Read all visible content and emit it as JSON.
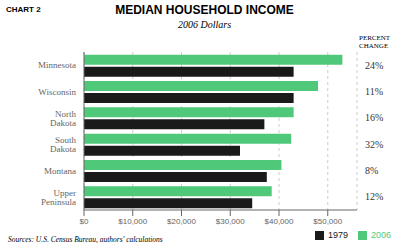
{
  "chart_data": {
    "type": "bar",
    "orientation": "horizontal",
    "title": "MEDIAN HOUSEHOLD INCOME",
    "subtitle": "2006 Dollars",
    "annotations": [
      "CHART 2",
      "Sources: U.S. Census Bureau, authors' calculations"
    ],
    "categories": [
      "Minnesota",
      "Wisconsin",
      "North Dakota",
      "South Dakota",
      "Montana",
      "Upper Peninsula"
    ],
    "series": [
      {
        "name": "2006",
        "color": "#4fc87a",
        "values": [
          53000,
          48000,
          43000,
          42500,
          40500,
          38500
        ]
      },
      {
        "name": "1979",
        "color": "#1a1a1a",
        "values": [
          43000,
          43000,
          37000,
          32000,
          37500,
          34500
        ]
      }
    ],
    "percent_change_title": "PERCENT\nCHANGE",
    "percent_change": [
      {
        "value": 24,
        "label": "24%"
      },
      {
        "value": 11,
        "label": "11%"
      },
      {
        "value": 16,
        "label": "16%"
      },
      {
        "value": 32,
        "label": "32%"
      },
      {
        "value": 8,
        "label": "8%"
      },
      {
        "value": 12,
        "label": "12%"
      }
    ],
    "xlim": [
      0,
      56000
    ],
    "xticks": [
      {
        "value": 0,
        "label": "$0"
      },
      {
        "value": 10000,
        "label": "$10,000"
      },
      {
        "value": 20000,
        "label": "$20,000"
      },
      {
        "value": 30000,
        "label": "$30,000"
      },
      {
        "value": 40000,
        "label": "$40,000"
      },
      {
        "value": 50000,
        "label": "$50,000"
      }
    ],
    "grid": true,
    "legend": "lower right"
  }
}
